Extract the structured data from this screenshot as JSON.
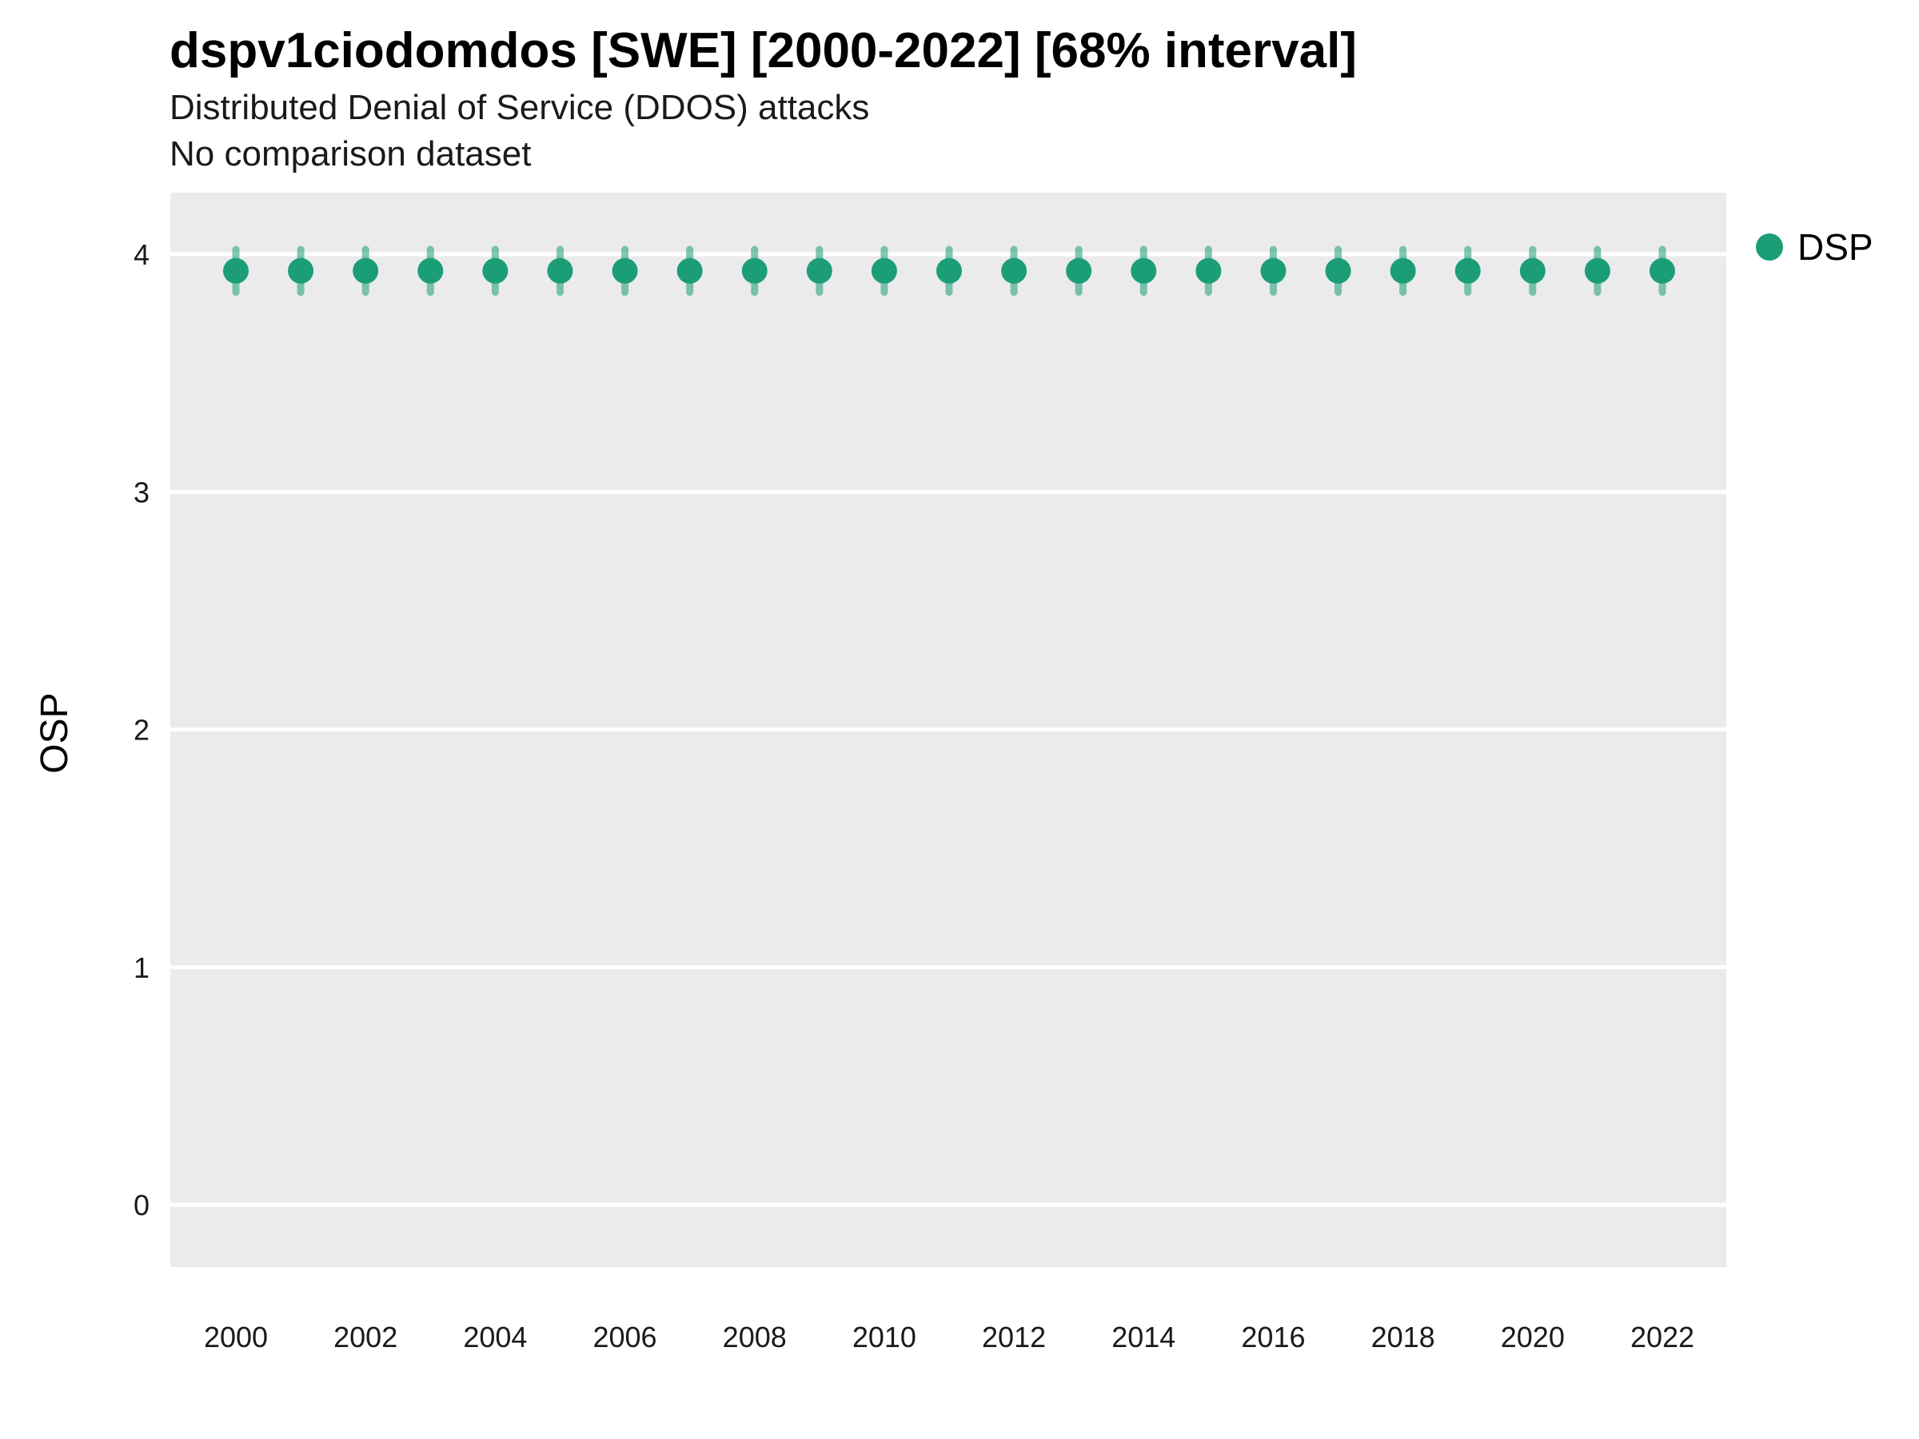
{
  "title": "dspv1ciodomdos [SWE] [2000-2022] [68% interval]",
  "subtitle": "Distributed Denial of Service (DDOS) attacks",
  "subtitle2": "No comparison dataset",
  "ylabel": "OSP",
  "legend": {
    "label": "DSP",
    "color": "#1b9e77"
  },
  "chart_data": {
    "type": "scatter",
    "title": "dspv1ciodomdos [SWE] [2000-2022] [68% interval]",
    "xlabel": "",
    "ylabel": "OSP",
    "x": [
      2000,
      2001,
      2002,
      2003,
      2004,
      2005,
      2006,
      2007,
      2008,
      2009,
      2010,
      2011,
      2012,
      2013,
      2014,
      2015,
      2016,
      2017,
      2018,
      2019,
      2020,
      2021,
      2022
    ],
    "series": [
      {
        "name": "DSP",
        "color": "#1b9e77",
        "values": [
          3.93,
          3.93,
          3.93,
          3.93,
          3.93,
          3.93,
          3.93,
          3.93,
          3.93,
          3.93,
          3.93,
          3.93,
          3.93,
          3.93,
          3.93,
          3.93,
          3.93,
          3.93,
          3.93,
          3.93,
          3.93,
          3.93,
          3.93
        ],
        "err_low": [
          3.84,
          3.84,
          3.84,
          3.84,
          3.84,
          3.84,
          3.84,
          3.84,
          3.84,
          3.84,
          3.84,
          3.84,
          3.84,
          3.84,
          3.84,
          3.84,
          3.84,
          3.84,
          3.84,
          3.84,
          3.84,
          3.84,
          3.84
        ],
        "err_high": [
          4.02,
          4.02,
          4.02,
          4.02,
          4.02,
          4.02,
          4.02,
          4.02,
          4.02,
          4.02,
          4.02,
          4.02,
          4.02,
          4.02,
          4.02,
          4.02,
          4.02,
          4.02,
          4.02,
          4.02,
          4.02,
          4.02,
          4.02
        ]
      }
    ],
    "x_ticks": [
      2000,
      2002,
      2004,
      2006,
      2008,
      2010,
      2012,
      2014,
      2016,
      2018,
      2020,
      2022
    ],
    "y_ticks": [
      0,
      1,
      2,
      3,
      4
    ],
    "ylim": [
      -0.26,
      4.26
    ],
    "interval_label": "68% interval",
    "grid": true,
    "legend_position": "right",
    "panel_bg": "#ebebeb",
    "grid_color": "#ffffff",
    "tick_label_color": "#1a1a1a"
  }
}
